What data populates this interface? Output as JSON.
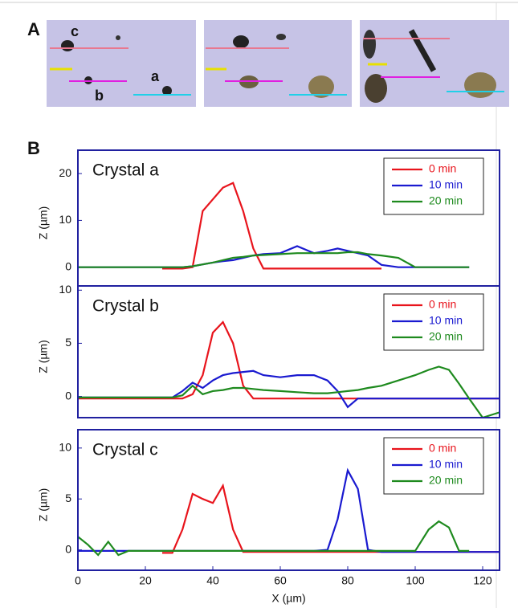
{
  "panel_labels": [
    "A",
    "B"
  ],
  "image_labels": [
    "c",
    "b",
    "a"
  ],
  "chart_data": [
    {
      "type": "line",
      "title": "Crystal a",
      "ylabel": "Z (µm)",
      "legend": "upper right",
      "xlim": [
        0,
        125
      ],
      "ylim": [
        -4,
        25
      ],
      "yticks": [
        0,
        10,
        20
      ],
      "x": [
        0,
        3,
        6,
        9,
        12,
        15,
        20,
        25,
        28,
        31,
        34,
        37,
        40,
        43,
        46,
        49,
        52,
        55,
        60,
        65,
        70,
        74,
        77,
        80,
        83,
        86,
        90,
        95,
        100,
        104,
        107,
        110,
        113,
        116,
        120,
        125
      ],
      "series": [
        {
          "name": "0 min",
          "color": "#e8141c",
          "values": [
            null,
            null,
            null,
            null,
            null,
            null,
            null,
            -0.3,
            -0.3,
            -0.3,
            0,
            12,
            14.5,
            17,
            18,
            12,
            4,
            -0.3,
            -0.3,
            -0.3,
            -0.3,
            -0.3,
            -0.3,
            -0.3,
            -0.3,
            -0.3,
            -0.3,
            null,
            null,
            null,
            null,
            null,
            null,
            null,
            null,
            null
          ]
        },
        {
          "name": "10 min",
          "color": "#1a1ad0",
          "values": [
            0,
            0,
            0,
            0,
            0,
            0,
            0,
            0,
            0,
            0,
            0.2,
            0.6,
            1,
            1.3,
            1.5,
            2,
            2.5,
            2.8,
            3,
            4.5,
            3,
            3.5,
            4,
            3.5,
            3,
            2.5,
            0.5,
            0,
            0,
            0,
            0,
            0,
            0,
            0,
            null,
            null
          ]
        },
        {
          "name": "20 min",
          "color": "#1e8a1e",
          "values": [
            0,
            0,
            0,
            0,
            0,
            0,
            0,
            0,
            0,
            0,
            0.2,
            0.6,
            1,
            1.5,
            2,
            2.2,
            2.5,
            2.6,
            2.8,
            3,
            3,
            3,
            3,
            3.2,
            3.2,
            2.8,
            2.5,
            2,
            0,
            0,
            0,
            0,
            0,
            0,
            null,
            null
          ]
        }
      ]
    },
    {
      "type": "line",
      "title": "Crystal b",
      "ylabel": "Z (µm)",
      "legend": "upper right",
      "xlim": [
        0,
        125
      ],
      "ylim": [
        -2,
        10.4
      ],
      "yticks": [
        0,
        5,
        10
      ],
      "x": [
        0,
        3,
        6,
        9,
        12,
        15,
        20,
        25,
        28,
        31,
        34,
        37,
        40,
        43,
        46,
        49,
        52,
        55,
        60,
        65,
        70,
        74,
        77,
        80,
        83,
        86,
        90,
        95,
        100,
        104,
        107,
        110,
        113,
        116,
        120,
        125
      ],
      "series": [
        {
          "name": "0 min",
          "color": "#e8141c",
          "values": [
            -0.2,
            -0.2,
            -0.2,
            -0.2,
            -0.2,
            -0.2,
            -0.2,
            -0.2,
            -0.2,
            -0.2,
            0.2,
            2,
            6,
            7,
            5,
            1,
            -0.2,
            -0.2,
            -0.2,
            -0.2,
            -0.2,
            -0.2,
            -0.2,
            -0.2,
            -0.2,
            -0.2,
            -0.2,
            -0.2,
            -0.2,
            -0.2,
            -0.2,
            -0.2,
            -0.2,
            -0.2,
            -0.2,
            -0.2
          ]
        },
        {
          "name": "10 min",
          "color": "#1a1ad0",
          "values": [
            -0.1,
            -0.1,
            -0.1,
            -0.1,
            -0.1,
            -0.1,
            -0.1,
            -0.1,
            -0.1,
            0.5,
            1.3,
            0.8,
            1.5,
            2,
            2.2,
            2.3,
            2.4,
            2,
            1.8,
            2,
            2,
            1.5,
            0.5,
            -1,
            -0.2,
            -0.2,
            -0.2,
            -0.2,
            -0.2,
            -0.2,
            -0.2,
            -0.2,
            -0.2,
            -0.2,
            -0.2,
            -0.2
          ]
        },
        {
          "name": "20 min",
          "color": "#1e8a1e",
          "values": [
            -0.1,
            -0.1,
            -0.1,
            -0.1,
            -0.1,
            -0.1,
            -0.1,
            -0.1,
            -0.1,
            0.1,
            1,
            0.2,
            0.5,
            0.6,
            0.8,
            0.8,
            0.7,
            0.6,
            0.5,
            0.4,
            0.3,
            0.3,
            0.4,
            0.5,
            0.6,
            0.8,
            1,
            1.5,
            2,
            2.5,
            2.8,
            2.5,
            1.2,
            -0.2,
            -2,
            -1.5
          ]
        }
      ]
    },
    {
      "type": "line",
      "title": "Crystal c",
      "ylabel": "Z (µm)",
      "xlabel": "X (µm)",
      "legend": "upper right",
      "xlim": [
        0,
        125
      ],
      "ylim": [
        -2,
        11.8
      ],
      "yticks": [
        0,
        5,
        10
      ],
      "xticks": [
        0,
        20,
        40,
        60,
        80,
        100,
        120
      ],
      "x": [
        0,
        3,
        6,
        9,
        12,
        15,
        20,
        25,
        28,
        31,
        34,
        37,
        40,
        43,
        46,
        49,
        52,
        55,
        60,
        65,
        70,
        74,
        77,
        80,
        83,
        86,
        90,
        95,
        100,
        104,
        107,
        110,
        113,
        116,
        120,
        125
      ],
      "series": [
        {
          "name": "0 min",
          "color": "#e8141c",
          "values": [
            null,
            null,
            null,
            null,
            null,
            null,
            null,
            -0.3,
            -0.3,
            2,
            5.5,
            5,
            4.6,
            6.3,
            2,
            -0.2,
            -0.2,
            -0.2,
            -0.2,
            -0.2,
            -0.2,
            -0.2,
            -0.2,
            -0.2,
            -0.2,
            -0.2,
            -0.2,
            -0.2,
            -0.2,
            -0.2,
            -0.2,
            -0.2,
            -0.2,
            -0.2,
            -0.2,
            -0.2
          ]
        },
        {
          "name": "10 min",
          "color": "#1a1ad0",
          "values": [
            -0.1,
            -0.1,
            -0.1,
            -0.1,
            -0.1,
            -0.1,
            -0.1,
            -0.1,
            -0.1,
            -0.1,
            -0.1,
            -0.1,
            -0.1,
            -0.1,
            -0.1,
            -0.1,
            -0.1,
            -0.1,
            -0.1,
            -0.1,
            -0.1,
            0,
            3,
            7.8,
            6,
            0,
            -0.2,
            -0.2,
            -0.2,
            -0.2,
            -0.2,
            -0.2,
            -0.2,
            -0.2,
            -0.2,
            -0.2
          ]
        },
        {
          "name": "20 min",
          "color": "#1e8a1e",
          "values": [
            1.3,
            0.5,
            -0.5,
            0.8,
            -0.5,
            -0.1,
            -0.1,
            -0.1,
            -0.1,
            -0.1,
            -0.1,
            -0.1,
            -0.1,
            -0.1,
            -0.1,
            -0.1,
            -0.1,
            -0.1,
            -0.1,
            -0.1,
            -0.1,
            -0.1,
            -0.1,
            -0.1,
            -0.1,
            -0.1,
            -0.1,
            -0.1,
            -0.1,
            2,
            2.8,
            2.2,
            -0.1,
            -0.1,
            null,
            null
          ]
        }
      ]
    }
  ]
}
